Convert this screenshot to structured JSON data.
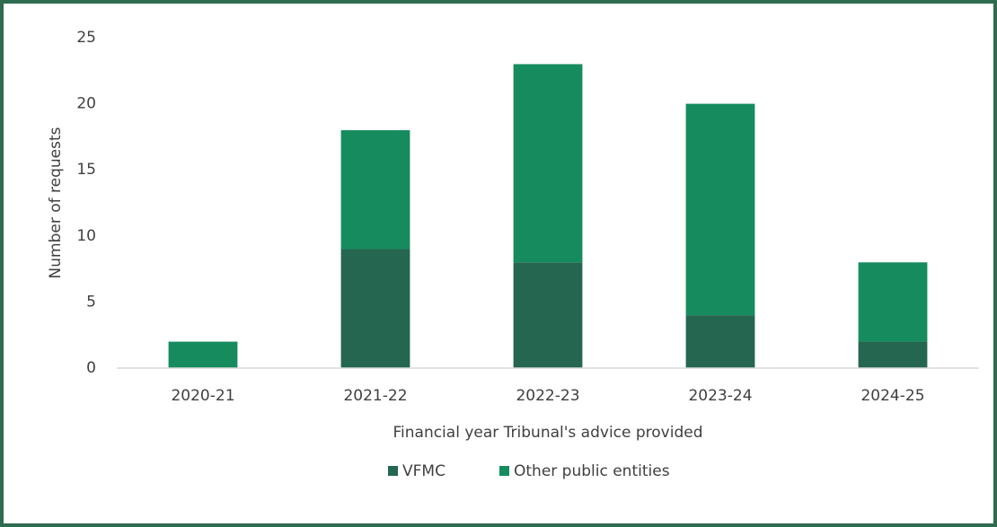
{
  "chart_data": {
    "type": "stacked_bar",
    "x_label": "Financial year Tribunal's advice provided",
    "y_label": "Number of requests",
    "categories": [
      "2020-21",
      "2021-22",
      "2022-23",
      "2023-24",
      "2024-25"
    ],
    "series": [
      {
        "name": "VFMC",
        "color": "#256650",
        "values": [
          0,
          9,
          8,
          4,
          2
        ]
      },
      {
        "name": "Other public entities",
        "color": "#168c5e",
        "values": [
          2,
          9,
          15,
          16,
          6
        ]
      }
    ],
    "ylim": [
      0,
      25
    ],
    "yticks": [
      0,
      5,
      10,
      15,
      20,
      25
    ],
    "grid": false,
    "legend": "bottom"
  }
}
